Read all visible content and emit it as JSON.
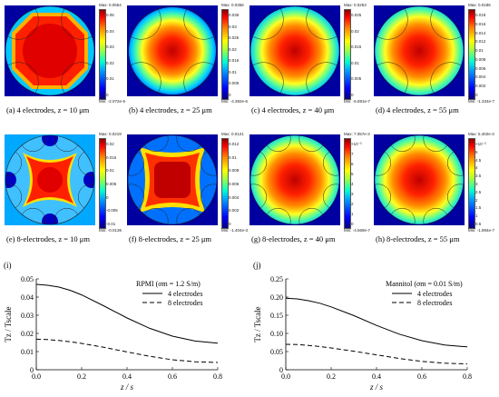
{
  "row1": [
    {
      "caption": "(a) 4 electrodes, z = 10 μm",
      "max": "Max: 0.0554",
      "min": "Min: -2.072e-5",
      "ticks": [
        "0.05",
        "0.04",
        "0.03",
        "0.02",
        "0.01",
        "0"
      ],
      "n_electrodes": 4,
      "style": "octagon"
    },
    {
      "caption": "(b) 4 electrodes, z = 25 μm",
      "max": "Max: 0.0356",
      "min": "Min: -4.392e-6",
      "ticks": [
        "0.035",
        "0.03",
        "0.025",
        "0.02",
        "0.015",
        "0.01",
        "0.005",
        "0"
      ],
      "n_electrodes": 4,
      "style": "disk"
    },
    {
      "caption": "(c) 4 electrodes, z = 40 μm",
      "max": "Max: 0.0253",
      "min": "Min: -6.691e-7",
      "ticks": [
        "0.025",
        "0.02",
        "0.015",
        "0.01",
        "0.005",
        "0"
      ],
      "n_electrodes": 4,
      "style": "disk-soft"
    },
    {
      "caption": "(d) 4 electrodes, z = 55 μm",
      "max": "Max: 0.0186",
      "min": "Min: -1.334e-7",
      "ticks": [
        "0.018",
        "0.016",
        "0.014",
        "0.012",
        "0.01",
        "0.008",
        "0.006",
        "0.004",
        "0.002",
        "0"
      ],
      "n_electrodes": 4,
      "style": "square-soft"
    }
  ],
  "row2": [
    {
      "caption": "(e) 8-electrodes, z = 10 μm",
      "max": "Max: 0.0219",
      "min": "Min: -0.0136",
      "ticks": [
        "0.02",
        "0.015",
        "0.01",
        "0.005",
        "0",
        "-0.005",
        "-0.01"
      ],
      "n_electrodes": 8,
      "style": "cross"
    },
    {
      "caption": "(f) 8-electrodes, z = 25 μm",
      "max": "Max: 0.0121",
      "min": "Min: -1.404e-3",
      "ticks": [
        "0.012",
        "0.01",
        "0.008",
        "0.006",
        "0.004",
        "0.002",
        "0"
      ],
      "n_electrodes": 8,
      "style": "square"
    },
    {
      "caption": "(g) 8-electrodes, z = 40 μm",
      "max": "Max: 7.057e-3",
      "min": "Min: -4.569e-7",
      "ticks": [
        "×10⁻³",
        "7",
        "6",
        "5",
        "4",
        "3",
        "2",
        "1",
        "0"
      ],
      "n_electrodes": 8,
      "style": "square-soft"
    },
    {
      "caption": "(h) 8-electrodes, z = 55 μm",
      "max": "Max: 5.402e-3",
      "min": "Min: -1.894e-7",
      "ticks": [
        "×10⁻³",
        "5",
        "4.5",
        "4",
        "3.5",
        "3",
        "2.5",
        "2",
        "1.5",
        "1",
        "0.5"
      ],
      "n_electrodes": 8,
      "style": "square-soft"
    }
  ],
  "plots": [
    {
      "letter": "(i)",
      "legend_title": "RPMI (σm = 1.2 S/m)",
      "ylabel": "Tz / Tscale",
      "xlabel": "z / s",
      "yticks": [
        "0",
        "0.01",
        "0.02",
        "0.03",
        "0.04",
        "0.05"
      ],
      "xticks": [
        "0.0",
        "0.2",
        "0.4",
        "0.6",
        "0.8"
      ]
    },
    {
      "letter": "(j)",
      "legend_title": "Mannitol (σm = 0.01 S/m)",
      "ylabel": "Tz / Tscale",
      "xlabel": "z / s",
      "yticks": [
        "0",
        "0.05",
        "0.10",
        "0.15",
        "0.20",
        "0.25"
      ],
      "xticks": [
        "0.0",
        "0.2",
        "0.4",
        "0.6",
        "0.8"
      ]
    }
  ],
  "chart_data": [
    {
      "type": "line",
      "title": "",
      "xlabel": "z / s",
      "ylabel": "Tz / Tscale",
      "xlim": [
        0,
        0.8
      ],
      "ylim": [
        0,
        0.05
      ],
      "legend_title": "RPMI (σm = 1.2 S/m)",
      "x": [
        0,
        0.05,
        0.1,
        0.15,
        0.2,
        0.3,
        0.4,
        0.5,
        0.6,
        0.7,
        0.8
      ],
      "series": [
        {
          "name": "4 electrodes",
          "dash": "solid",
          "values": [
            0.047,
            0.0465,
            0.0455,
            0.0437,
            0.0412,
            0.035,
            0.0285,
            0.0228,
            0.0185,
            0.0158,
            0.0146
          ]
        },
        {
          "name": "8 electrodes",
          "dash": "dashed",
          "values": [
            0.0168,
            0.0166,
            0.0161,
            0.0154,
            0.0145,
            0.0123,
            0.0098,
            0.0074,
            0.0055,
            0.0044,
            0.004
          ]
        }
      ]
    },
    {
      "type": "line",
      "title": "",
      "xlabel": "z / s",
      "ylabel": "Tz / Tscale",
      "xlim": [
        0,
        0.8
      ],
      "ylim": [
        0,
        0.25
      ],
      "legend_title": "Mannitol (σm = 0.01 S/m)",
      "x": [
        0,
        0.05,
        0.1,
        0.15,
        0.2,
        0.3,
        0.4,
        0.5,
        0.6,
        0.7,
        0.8
      ],
      "series": [
        {
          "name": "4 electrodes",
          "dash": "solid",
          "values": [
            0.197,
            0.195,
            0.19,
            0.183,
            0.173,
            0.149,
            0.122,
            0.098,
            0.08,
            0.068,
            0.063
          ]
        },
        {
          "name": "8 electrodes",
          "dash": "dashed",
          "values": [
            0.07,
            0.0695,
            0.067,
            0.064,
            0.06,
            0.051,
            0.041,
            0.031,
            0.023,
            0.018,
            0.016
          ]
        }
      ]
    }
  ]
}
